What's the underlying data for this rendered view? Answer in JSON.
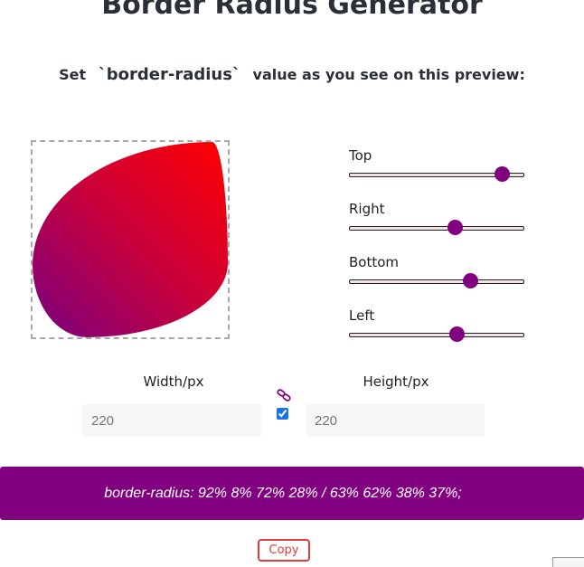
{
  "header": {
    "title": "Border Radius Generator",
    "subtitle_before": "Set",
    "subtitle_code": "`border-radius`",
    "subtitle_after": "value as you see on this preview:"
  },
  "preview": {
    "gradient_colors": [
      "#7a0080",
      "#ff0000"
    ],
    "border_radius": "92% 8% 72% 28% / 63% 62% 38% 37%"
  },
  "sliders": [
    {
      "label": "Top",
      "value_fraction": 0.88
    },
    {
      "label": "Right",
      "value_fraction": 0.61
    },
    {
      "label": "Bottom",
      "value_fraction": 0.7
    },
    {
      "label": "Left",
      "value_fraction": 0.62
    }
  ],
  "dimensions": {
    "width_label": "Width/px",
    "width_value": "220",
    "height_label": "Height/px",
    "height_value": "220",
    "link_icon": "link-icon",
    "lock_checked": true
  },
  "result": {
    "css_text": "border-radius: 92% 8% 72% 28% / 63% 62% 38% 37%;"
  },
  "actions": {
    "copy_label": "Copy"
  },
  "colors": {
    "accent": "#800080",
    "slider_thumb": "#800080",
    "copy_button": "#e23b3b"
  }
}
